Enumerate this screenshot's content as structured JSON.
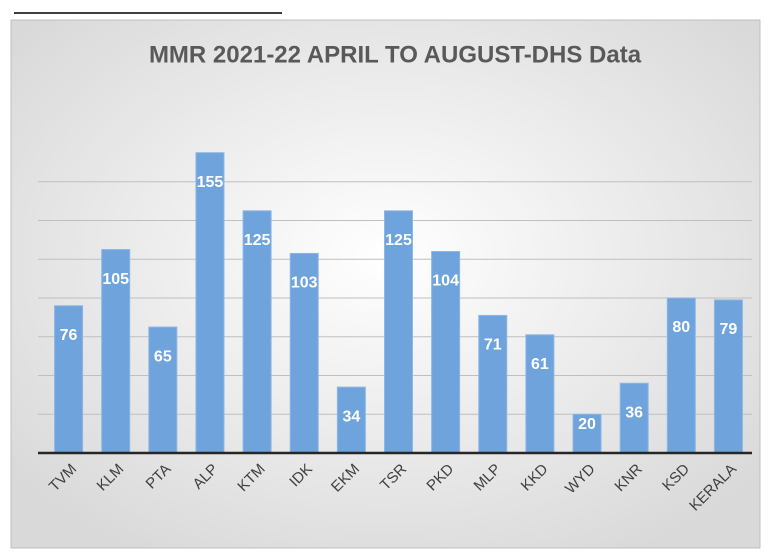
{
  "chart_data": {
    "type": "bar",
    "title": "MMR  2021-22 APRIL TO AUGUST-DHS Data",
    "categories": [
      "TVM",
      "KLM",
      "PTA",
      "ALP",
      "KTM",
      "IDK",
      "EKM",
      "TSR",
      "PKD",
      "MLP",
      "KKD",
      "WYD",
      "KNR",
      "KSD",
      "KERALA"
    ],
    "values": [
      76,
      105,
      65,
      155,
      125,
      103,
      34,
      125,
      104,
      71,
      61,
      20,
      36,
      80,
      79
    ],
    "color": "#6fa3dc",
    "ylim": [
      0,
      160
    ],
    "yticks": [
      0,
      20,
      40,
      60,
      80,
      100,
      120,
      140
    ],
    "grid": true
  }
}
